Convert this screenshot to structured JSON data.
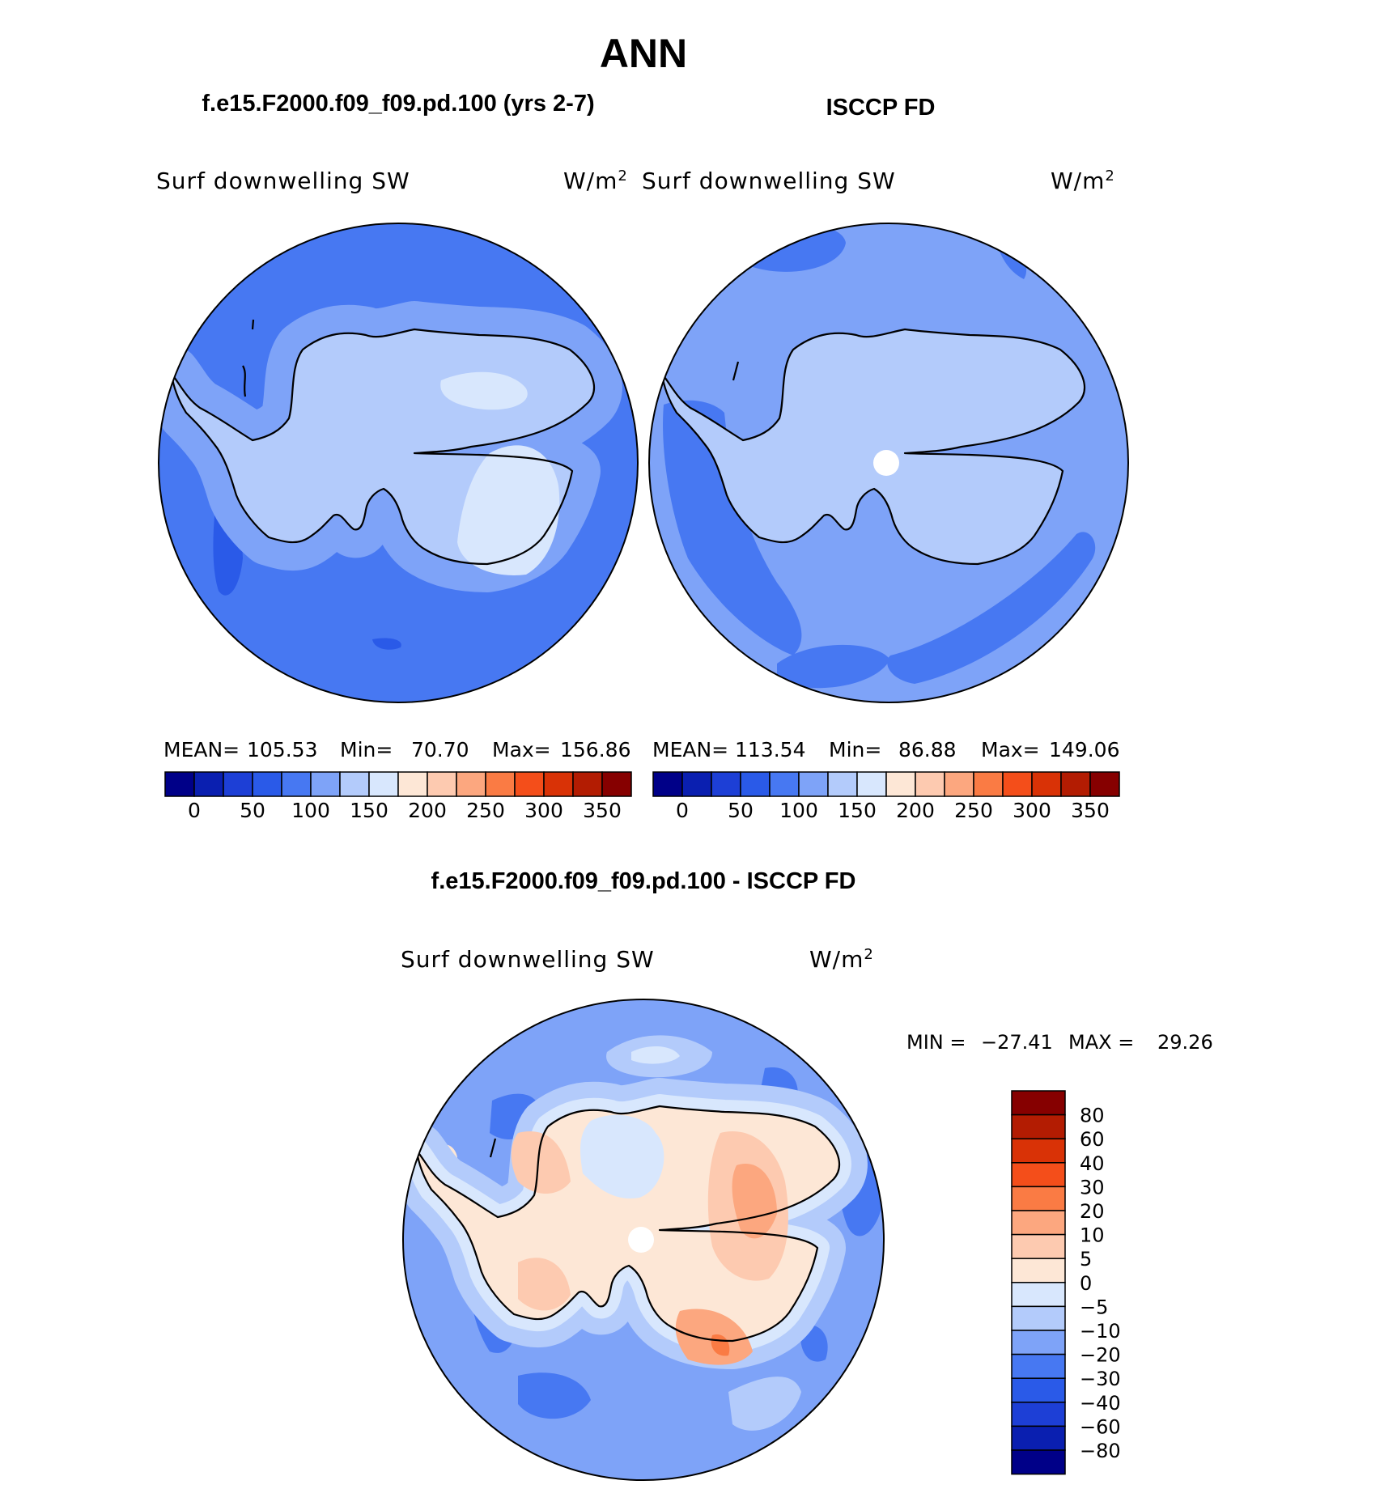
{
  "figure": {
    "season": "ANN",
    "panels": [
      {
        "title": "f.e15.F2000.f09_f09.pd.100 (yrs 2-7)",
        "variable": "Surf downwelling SW",
        "units": "W/m",
        "units_exp": "2",
        "stats": {
          "mean_label": "MEAN=",
          "mean": "105.53",
          "min_label": "Min=",
          "min": "70.70",
          "max_label": "Max=",
          "max": "156.86"
        }
      },
      {
        "title": "ISCCP FD",
        "variable": "Surf downwelling SW",
        "units": "W/m",
        "units_exp": "2",
        "stats": {
          "mean_label": "MEAN=",
          "mean": "113.54",
          "min_label": "Min=",
          "min": "86.88",
          "max_label": "Max=",
          "max": "149.06"
        }
      }
    ],
    "diff_panel": {
      "title": "f.e15.F2000.f09_f09.pd.100 - ISCCP FD",
      "variable": "Surf downwelling SW",
      "units": "W/m",
      "units_exp": "2",
      "minmax": {
        "min_label": "MIN =",
        "min": "−27.41",
        "max_label": "MAX =",
        "max": "29.26"
      }
    }
  },
  "chart_data": [
    {
      "type": "heatmap",
      "projection": "south-polar-stereographic",
      "title": "f.e15.F2000.f09_f09.pd.100 (yrs 2-7)",
      "variable": "Surf downwelling SW",
      "units": "W/m2",
      "mean": 105.53,
      "min": 70.7,
      "max": 156.86,
      "levels": [
        0,
        25,
        50,
        75,
        100,
        125,
        150,
        175,
        200,
        225,
        250,
        275,
        300,
        325,
        350
      ],
      "colorbar_ticks": [
        "0",
        "50",
        "100",
        "150",
        "200",
        "250",
        "300",
        "350"
      ],
      "colors": [
        "#000088",
        "#0a1fb0",
        "#1d3fd6",
        "#2a5ae8",
        "#4778f2",
        "#7ea3f8",
        "#b3cbfb",
        "#d8e7fd",
        "#fde7d6",
        "#fdcab0",
        "#fca77f",
        "#fa7b44",
        "#f44e1a",
        "#d93206",
        "#b31c02",
        "#860000"
      ]
    },
    {
      "type": "heatmap",
      "projection": "south-polar-stereographic",
      "title": "ISCCP FD",
      "variable": "Surf downwelling SW",
      "units": "W/m2",
      "mean": 113.54,
      "min": 86.88,
      "max": 149.06,
      "levels": [
        0,
        25,
        50,
        75,
        100,
        125,
        150,
        175,
        200,
        225,
        250,
        275,
        300,
        325,
        350
      ],
      "colorbar_ticks": [
        "0",
        "50",
        "100",
        "150",
        "200",
        "250",
        "300",
        "350"
      ],
      "colors": [
        "#000088",
        "#0a1fb0",
        "#1d3fd6",
        "#2a5ae8",
        "#4778f2",
        "#7ea3f8",
        "#b3cbfb",
        "#d8e7fd",
        "#fde7d6",
        "#fdcab0",
        "#fca77f",
        "#fa7b44",
        "#f44e1a",
        "#d93206",
        "#b31c02",
        "#860000"
      ]
    },
    {
      "type": "heatmap",
      "projection": "south-polar-stereographic",
      "title": "f.e15.F2000.f09_f09.pd.100 - ISCCP FD",
      "variable": "Surf downwelling SW",
      "units": "W/m2",
      "min": -27.41,
      "max": 29.26,
      "levels": [
        -80,
        -60,
        -40,
        -30,
        -20,
        -10,
        -5,
        0,
        5,
        10,
        20,
        30,
        40,
        60,
        80
      ],
      "colorbar_ticks": [
        "80",
        "60",
        "40",
        "30",
        "20",
        "10",
        "5",
        "0",
        "−5",
        "−10",
        "−20",
        "−30",
        "−40",
        "−60",
        "−80"
      ],
      "colors_top_to_bottom": [
        "#860000",
        "#b31c02",
        "#d93206",
        "#f44e1a",
        "#fa7b44",
        "#fca77f",
        "#fdcab0",
        "#fde7d6",
        "#d8e7fd",
        "#b3cbfb",
        "#7ea3f8",
        "#4778f2",
        "#2a5ae8",
        "#1d3fd6",
        "#0a1fb0",
        "#000088"
      ]
    }
  ]
}
